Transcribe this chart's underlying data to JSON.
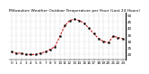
{
  "title": "Milwaukee Weather Outdoor Temperature per Hour (Last 24 Hours)",
  "hours": [
    0,
    1,
    2,
    3,
    4,
    5,
    6,
    7,
    8,
    9,
    10,
    11,
    12,
    13,
    14,
    15,
    16,
    17,
    18,
    19,
    20,
    21,
    22,
    23
  ],
  "temps": [
    22,
    21,
    21,
    20,
    20,
    20,
    21,
    22,
    24,
    26,
    34,
    42,
    46,
    47,
    46,
    44,
    40,
    36,
    32,
    30,
    29,
    34,
    33,
    32
  ],
  "line_color": "#cc0000",
  "marker_color": "#000000",
  "bg_color": "#ffffff",
  "grid_color": "#999999",
  "ylim_min": 16,
  "ylim_max": 52,
  "ytick_vals": [
    20,
    25,
    30,
    35,
    40,
    45,
    50
  ],
  "ytick_labels": [
    "20",
    "25",
    "30",
    "35",
    "40",
    "45",
    "50"
  ],
  "tick_fontsize": 3.0,
  "title_fontsize": 3.2
}
